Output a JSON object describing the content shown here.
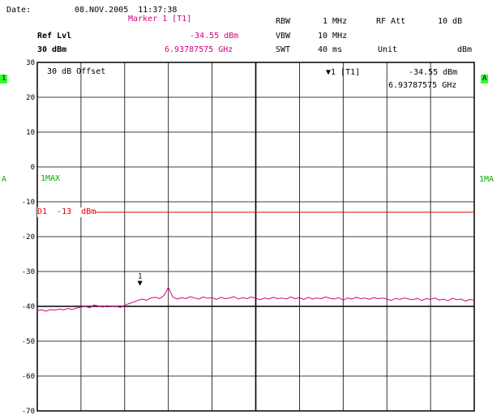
{
  "header": {
    "date_label": "Date:",
    "date_value": "08.NOV.2005  11:37:38",
    "marker_title": "Marker 1 [T1]",
    "ref_lvl_label": "Ref Lvl",
    "ref_lvl_value": "30 dBm",
    "marker_level": "-34.55 dBm",
    "marker_freq": "6.93787575 GHz",
    "rbw_label": "RBW",
    "rbw_value": "1 MHz",
    "vbw_label": "VBW",
    "vbw_value": "10 MHz",
    "swt_label": "SWT",
    "swt_value": "40 ms",
    "rfatt_label": "RF Att",
    "rfatt_value": "10 dB",
    "unit_label": "Unit",
    "unit_value": "dBm"
  },
  "plot": {
    "offset_label": "30 dB Offset",
    "marker_info_label": "▼1 [T1]",
    "marker_info_level": "-34.55 dBm",
    "marker_info_freq": "6.93787575 GHz",
    "left_tag": "1",
    "right_tag": "A",
    "left_side_a": "A",
    "right_side_1ma": "1MA",
    "trace_mode": "1MAX",
    "display_line_label": "D1  -13  dBm",
    "marker_number": "1"
  },
  "chart_data": {
    "type": "line",
    "title": "",
    "xlabel": "",
    "ylabel": "",
    "ylim": [
      -70,
      30
    ],
    "yticks": [
      30,
      20,
      10,
      0,
      -10,
      -20,
      -30,
      -40,
      -50,
      -60,
      -70
    ],
    "grid": true,
    "display_line": {
      "name": "D1",
      "value": -13,
      "unit": "dBm"
    },
    "marker": {
      "index": 1,
      "level_dbm": -34.55,
      "freq_ghz": 6.93787575,
      "x_fraction": 0.235
    },
    "series": [
      {
        "values_dbm": [
          -41.2,
          -41.0,
          -41.4,
          -40.9,
          -41.1,
          -40.8,
          -41.0,
          -40.6,
          -40.9,
          -40.5,
          -40.2,
          -40.0,
          -40.4,
          -39.6,
          -39.9,
          -40.2,
          -39.8,
          -40.1,
          -39.9,
          -40.3,
          -39.7,
          -39.2,
          -38.8,
          -38.3,
          -37.9,
          -38.2,
          -37.6,
          -37.4,
          -37.8,
          -36.9,
          -34.55,
          -37.3,
          -37.9,
          -37.5,
          -37.8,
          -37.2,
          -37.6,
          -37.9,
          -37.3,
          -37.7,
          -37.5,
          -38.0,
          -37.4,
          -37.8,
          -37.6,
          -37.2,
          -37.9,
          -37.5,
          -37.8,
          -37.3,
          -37.7,
          -38.1,
          -37.6,
          -37.9,
          -37.4,
          -37.8,
          -37.6,
          -37.9,
          -37.3,
          -37.8,
          -37.5,
          -38.0,
          -37.4,
          -37.9,
          -37.6,
          -37.8,
          -37.3,
          -37.7,
          -37.9,
          -37.5,
          -38.2,
          -37.6,
          -37.9,
          -37.4,
          -37.8,
          -37.6,
          -38.0,
          -37.5,
          -37.8,
          -37.6,
          -37.9,
          -38.3,
          -37.7,
          -38.0,
          -37.6,
          -37.9,
          -38.1,
          -37.7,
          -38.3,
          -37.8,
          -38.0,
          -37.6,
          -38.2,
          -37.9,
          -38.4,
          -37.7,
          -38.1,
          -37.9,
          -38.5,
          -38.0,
          -38.3
        ]
      }
    ]
  },
  "colors": {
    "trace": "#d6007f",
    "display_line": "#e00000",
    "tag_green": "#33ff33",
    "grid": "#000000"
  }
}
